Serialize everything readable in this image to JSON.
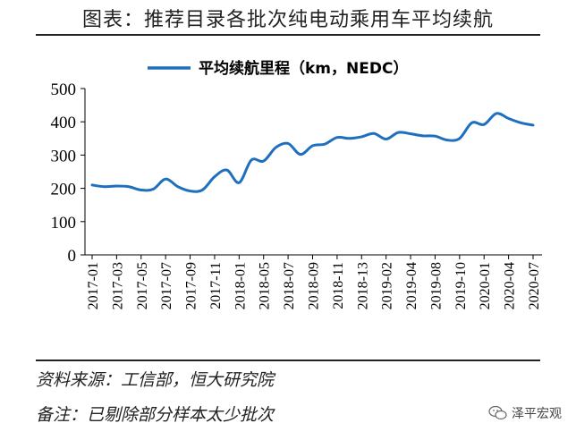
{
  "header": {
    "title": "图表：推荐目录各批次纯电动乘用车平均续航"
  },
  "footer": {
    "source": "资料来源：工信部，恒大研究院",
    "remark": "备注：已剔除部分样本太少批次",
    "watermark": "泽平宏观",
    "watermark_icon": "wechat-icon"
  },
  "colors": {
    "line": "#1f6fbf",
    "axis": "#000000",
    "text": "#000000"
  },
  "chart_data": {
    "type": "line",
    "legend": {
      "position": "top-center"
    },
    "grid": false,
    "ylim": [
      0,
      500
    ],
    "yticks": [
      0,
      100,
      200,
      300,
      400,
      500
    ],
    "xtick_labels": [
      "2017-01",
      "2017-03",
      "2017-05",
      "2017-07",
      "2017-09",
      "2017-11",
      "2018-01",
      "2018-05",
      "2018-07",
      "2018-09",
      "2018-11",
      "2018-13",
      "2019-02",
      "2019-04",
      "2019-08",
      "2019-10",
      "2020-01",
      "2020-04",
      "2020-07"
    ],
    "series": [
      {
        "name": "平均续航里程（km，NEDC）",
        "x": [
          "2017-01",
          "2017-02",
          "2017-03",
          "2017-04",
          "2017-05",
          "2017-06",
          "2017-07",
          "2017-08",
          "2017-09",
          "2017-10",
          "2017-11",
          "2017-12",
          "2018-01",
          "2018-02",
          "2018-05",
          "2018-06",
          "2018-07",
          "2018-08",
          "2018-09",
          "2018-10",
          "2018-11",
          "2018-12",
          "2018-13",
          "2018-14",
          "2019-02",
          "2019-03",
          "2019-04",
          "2019-05",
          "2019-08",
          "2019-09",
          "2019-10",
          "2019-11",
          "2020-01",
          "2020-02",
          "2020-04",
          "2020-05",
          "2020-07"
        ],
        "values": [
          210,
          205,
          207,
          205,
          195,
          198,
          228,
          205,
          192,
          195,
          235,
          255,
          217,
          285,
          282,
          323,
          335,
          302,
          328,
          333,
          353,
          350,
          355,
          365,
          348,
          368,
          364,
          358,
          357,
          345,
          350,
          397,
          392,
          425,
          410,
          397,
          390
        ]
      }
    ]
  }
}
